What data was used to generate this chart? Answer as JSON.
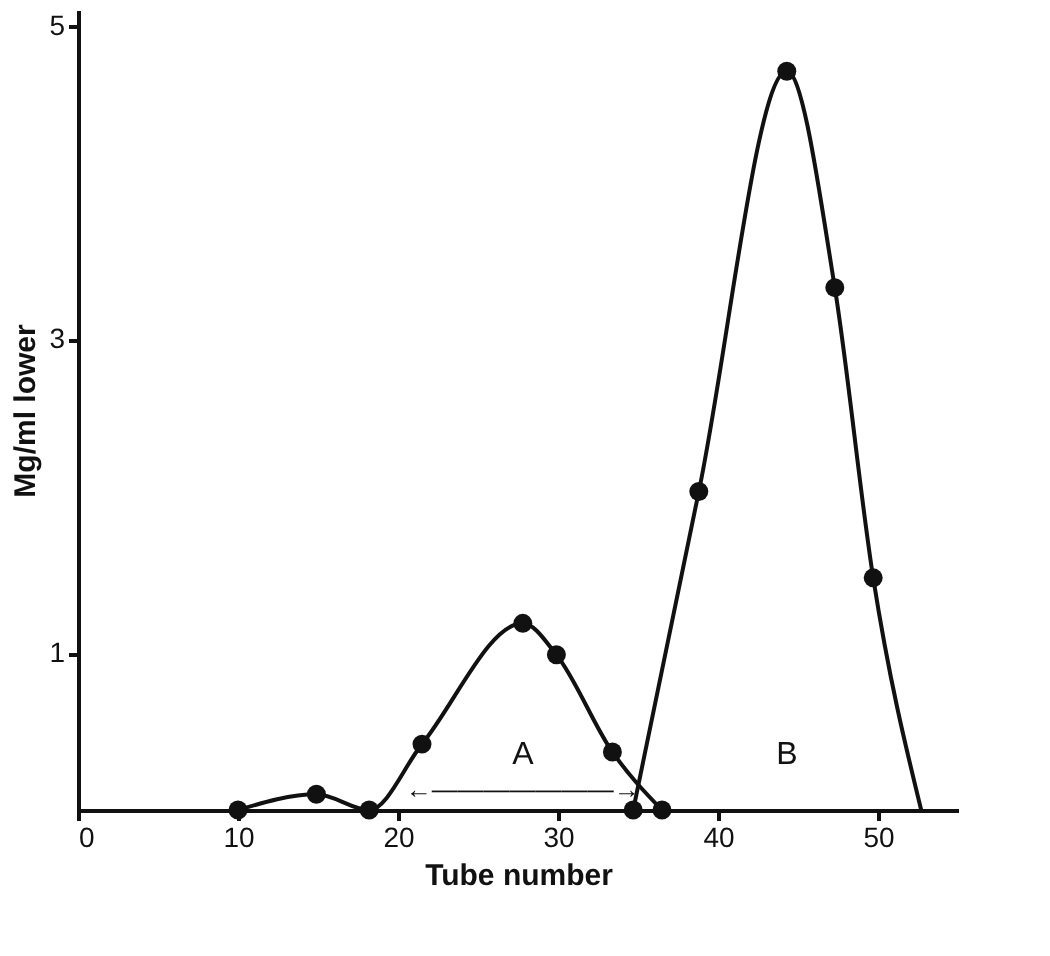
{
  "chart_data": {
    "type": "line",
    "xlabel": "Tube number",
    "ylabel": "Mg/ml lower",
    "xlim": [
      0,
      55
    ],
    "ylim": [
      0,
      5.1
    ],
    "xticks": [
      0,
      10,
      20,
      30,
      40,
      50
    ],
    "yticks": [
      1,
      3,
      5
    ],
    "grid": false,
    "marker": "circle",
    "line_style": "solid",
    "series": [
      {
        "color": "#111111",
        "x": [
          10,
          14.9,
          18.2,
          21.5,
          27.8,
          29.9,
          33.4,
          36.5
        ],
        "values": [
          0,
          0.1,
          0,
          0.42,
          1.19,
          0.99,
          0.37,
          0
        ]
      },
      {
        "color": "#111111",
        "marker": "none",
        "x": [
          34.7,
          38.8,
          44.3,
          47.3,
          49.7,
          52.7
        ],
        "values": [
          0,
          2.03,
          4.71,
          3.33,
          1.48,
          0
        ]
      },
      {
        "type": "scatter",
        "color": "#111111",
        "x": [
          34.7,
          38.8,
          44.3,
          47.3,
          49.7
        ],
        "values": [
          0,
          2.03,
          4.71,
          3.33,
          1.48
        ]
      }
    ],
    "annotations": [
      "A",
      "←———————→",
      "B"
    ]
  }
}
